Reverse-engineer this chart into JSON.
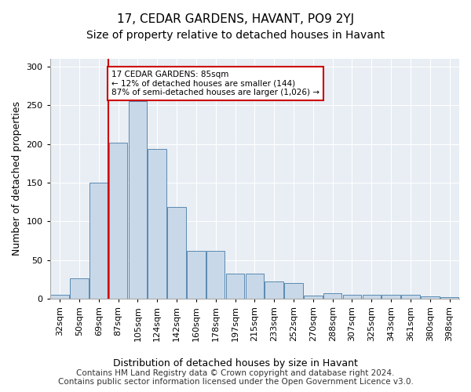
{
  "title": "17, CEDAR GARDENS, HAVANT, PO9 2YJ",
  "subtitle": "Size of property relative to detached houses in Havant",
  "xlabel": "Distribution of detached houses by size in Havant",
  "ylabel": "Number of detached properties",
  "categories": [
    "32sqm",
    "50sqm",
    "69sqm",
    "87sqm",
    "105sqm",
    "124sqm",
    "142sqm",
    "160sqm",
    "178sqm",
    "197sqm",
    "215sqm",
    "233sqm",
    "252sqm",
    "270sqm",
    "288sqm",
    "307sqm",
    "325sqm",
    "343sqm",
    "361sqm",
    "380sqm",
    "398sqm"
  ],
  "values": [
    5,
    26,
    150,
    202,
    255,
    193,
    118,
    62,
    62,
    32,
    32,
    22,
    20,
    4,
    7,
    5,
    5,
    5,
    5,
    3,
    2
  ],
  "bar_color": "#c8d8e8",
  "bar_edge_color": "#5a8ab0",
  "property_line_color": "#cc0000",
  "annotation_text": "17 CEDAR GARDENS: 85sqm\n← 12% of detached houses are smaller (144)\n87% of semi-detached houses are larger (1,026) →",
  "annotation_box_color": "#ffffff",
  "annotation_box_edge_color": "#cc0000",
  "ylim": [
    0,
    310
  ],
  "yticks": [
    0,
    50,
    100,
    150,
    200,
    250,
    300
  ],
  "background_color": "#e8eef4",
  "footer_text": "Contains HM Land Registry data © Crown copyright and database right 2024.\nContains public sector information licensed under the Open Government Licence v3.0.",
  "title_fontsize": 11,
  "subtitle_fontsize": 10,
  "xlabel_fontsize": 9,
  "ylabel_fontsize": 9,
  "tick_fontsize": 8,
  "footer_fontsize": 7.5
}
